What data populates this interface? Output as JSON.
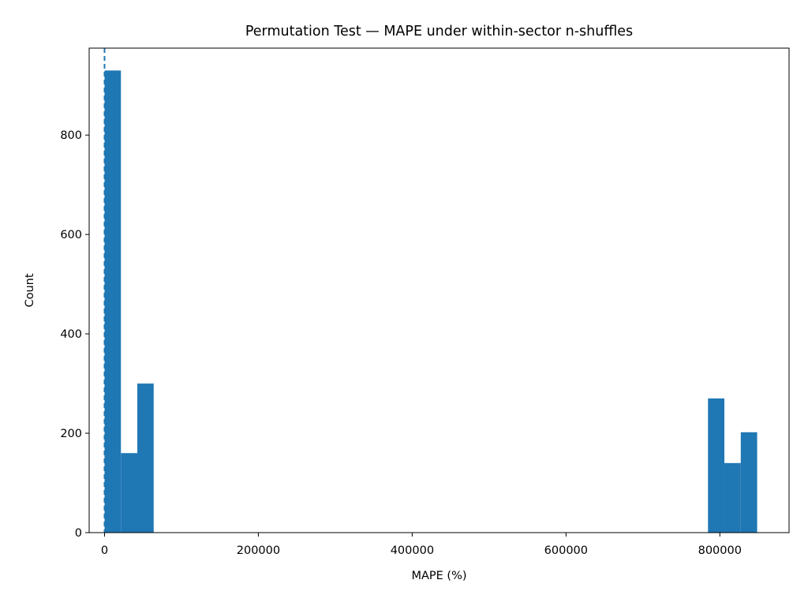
{
  "chart_data": {
    "type": "bar",
    "title": "Permutation Test — MAPE under within-sector n-shuffles",
    "xlabel": "MAPE (%)",
    "ylabel": "Count",
    "xlim": [
      -20000,
      890000
    ],
    "ylim": [
      0,
      975
    ],
    "xticks": [
      0,
      200000,
      400000,
      600000,
      800000
    ],
    "yticks": [
      0,
      200,
      400,
      600,
      800
    ],
    "bin_width": 21300,
    "bins": [
      {
        "x0": 0,
        "x1": 21300,
        "count": 930
      },
      {
        "x0": 21300,
        "x1": 42600,
        "count": 160
      },
      {
        "x0": 42600,
        "x1": 63900,
        "count": 300
      },
      {
        "x0": 784600,
        "x1": 805900,
        "count": 270
      },
      {
        "x0": 805900,
        "x1": 827200,
        "count": 140
      },
      {
        "x0": 827200,
        "x1": 848500,
        "count": 202
      }
    ],
    "reference_line": {
      "x": 0,
      "style": "dashed"
    },
    "grid": false,
    "colors": {
      "bars": "#1f77b4",
      "reference_line": "#1f77b4",
      "axes": "#000000"
    }
  }
}
